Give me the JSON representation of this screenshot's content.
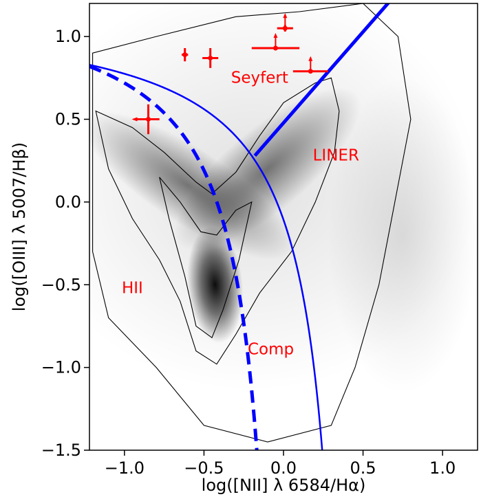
{
  "chart_data": {
    "type": "scatter",
    "title": "",
    "xlabel": "log([NII] λ 6584/Hα)",
    "ylabel": "log([OIII] λ 5007/Hβ)",
    "xlim": [
      -1.22,
      1.22
    ],
    "ylim": [
      -1.5,
      1.2
    ],
    "xticks": [
      -1.0,
      -0.5,
      0.0,
      0.5,
      1.0
    ],
    "xtick_labels": [
      "−1.0",
      "−0.5",
      "0.0",
      "0.5",
      "1.0"
    ],
    "yticks": [
      -1.5,
      -1.0,
      -0.5,
      0.0,
      0.5,
      1.0
    ],
    "ytick_labels": [
      "−1.5",
      "−1.0",
      "−0.5",
      "0.0",
      "0.5",
      "1.0"
    ],
    "grid": false,
    "region_labels": [
      {
        "text": "Seyfert",
        "x": -0.15,
        "y": 0.72
      },
      {
        "text": "LINER",
        "x": 0.33,
        "y": 0.25
      },
      {
        "text": "HII",
        "x": -0.95,
        "y": -0.55
      },
      {
        "text": "Comp",
        "x": -0.08,
        "y": -0.92
      }
    ],
    "demarcation_lines": [
      {
        "type": "solid",
        "description": "Kewley 2001 maximum starburst",
        "formula": "0.61/(x-0.47)+1.19"
      },
      {
        "type": "dashed",
        "description": "Kauffmann 2003 star-forming",
        "formula": "0.61/(x-0.05)+1.3"
      },
      {
        "type": "thick-solid",
        "description": "Seyfert/LINER division",
        "x": [
          -0.18,
          0.72
        ],
        "y": [
          0.28,
          1.27
        ]
      }
    ],
    "points": [
      {
        "x": -0.85,
        "y": 0.5,
        "xerr": 0.07,
        "yerr": 0.09,
        "arrow": "left"
      },
      {
        "x": -0.62,
        "y": 0.89,
        "xerr": 0.02,
        "yerr": 0.04
      },
      {
        "x": -0.46,
        "y": 0.87,
        "xerr": 0.05,
        "yerr": 0.06
      },
      {
        "x": -0.05,
        "y": 0.93,
        "xerr": 0.15,
        "yerr": 0.0,
        "arrow": "up"
      },
      {
        "x": 0.01,
        "y": 1.05,
        "xerr": 0.05,
        "yerr": 0.02,
        "arrow": "up"
      },
      {
        "x": 0.17,
        "y": 0.79,
        "xerr": 0.11,
        "yerr": 0.0,
        "arrow": "up"
      }
    ],
    "colors": {
      "lines": "#0000ff",
      "points": "#ff0000",
      "labels": "#ff0000",
      "contours": "#000000",
      "density": "#808080"
    }
  }
}
